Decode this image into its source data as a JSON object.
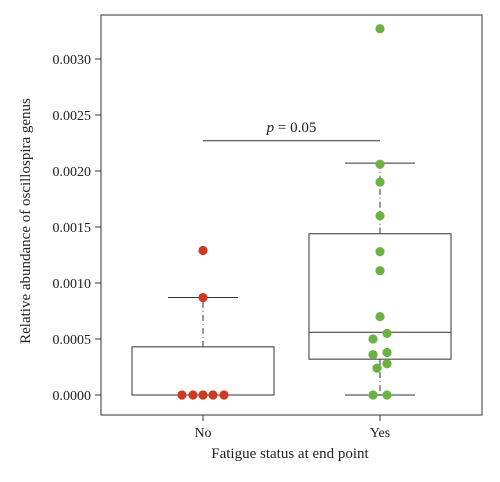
{
  "chart_data": {
    "type": "boxplot",
    "xlabel": "Fatigue status at end point",
    "ylabel": "Relative abundance of oscillospira genus",
    "ylim": [
      -5e-05,
      0.00335
    ],
    "yticks": [
      0.0,
      0.0005,
      0.001,
      0.0015,
      0.002,
      0.0025,
      0.003
    ],
    "ytick_labels": [
      "0.0000",
      "0.0005",
      "0.0010",
      "0.0015",
      "0.0020",
      "0.0025",
      "0.0030"
    ],
    "categories": [
      "No",
      "Yes"
    ],
    "groups": [
      {
        "category": "No",
        "color": "#cc3a1f",
        "box": {
          "q1": 0.0,
          "median": 0.0,
          "q3": 0.00043,
          "whisker_low": 0.0,
          "whisker_high": 0.00087
        },
        "points": [
          0.0,
          0.0,
          0.0,
          0.0,
          0.0,
          0.00087,
          0.00129
        ]
      },
      {
        "category": "Yes",
        "color": "#6ab343",
        "box": {
          "q1": 0.00032,
          "median": 0.00056,
          "q3": 0.00144,
          "whisker_low": 0.0,
          "whisker_high": 0.00207
        },
        "points": [
          0.00327,
          0.00206,
          0.0019,
          0.0016,
          0.00128,
          0.00111,
          0.0007,
          0.00055,
          0.0005,
          0.00038,
          0.00036,
          0.00028,
          0.00024,
          0.0,
          0.0
        ]
      }
    ],
    "annotation": {
      "italic": "p",
      "rest": " = 0.05",
      "y": 0.00227
    },
    "colors": {
      "frame": "#333333",
      "box": "#333333",
      "no": "#cc3a1f",
      "yes": "#6ab343"
    },
    "grid": false
  }
}
